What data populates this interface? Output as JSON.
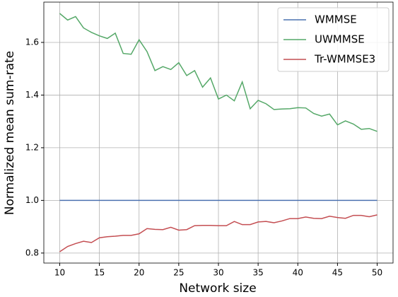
{
  "chart_data": {
    "type": "line",
    "x_label": "Network size",
    "y_label": "Normalized mean sum-rate",
    "x": [
      10,
      11,
      12,
      13,
      14,
      15,
      16,
      17,
      18,
      19,
      20,
      21,
      22,
      23,
      24,
      25,
      26,
      27,
      28,
      29,
      30,
      31,
      32,
      33,
      34,
      35,
      36,
      37,
      38,
      39,
      40,
      41,
      42,
      43,
      44,
      45,
      46,
      47,
      48,
      49,
      50
    ],
    "series": [
      {
        "name": "WMMSE",
        "color": "#4c72b0",
        "values": [
          1,
          1,
          1,
          1,
          1,
          1,
          1,
          1,
          1,
          1,
          1,
          1,
          1,
          1,
          1,
          1,
          1,
          1,
          1,
          1,
          1,
          1,
          1,
          1,
          1,
          1,
          1,
          1,
          1,
          1,
          1,
          1,
          1,
          1,
          1,
          1,
          1,
          1,
          1,
          1,
          1
        ]
      },
      {
        "name": "UWMMSE",
        "color": "#55a868",
        "values": [
          1.71,
          1.685,
          1.698,
          1.655,
          1.638,
          1.625,
          1.615,
          1.635,
          1.558,
          1.555,
          1.61,
          1.565,
          1.493,
          1.508,
          1.497,
          1.523,
          1.474,
          1.493,
          1.43,
          1.465,
          1.385,
          1.4,
          1.378,
          1.45,
          1.348,
          1.38,
          1.367,
          1.345,
          1.347,
          1.348,
          1.352,
          1.351,
          1.33,
          1.32,
          1.328,
          1.287,
          1.302,
          1.29,
          1.27,
          1.273,
          1.262
        ]
      },
      {
        "name": "Tr-WMMSE3",
        "color": "#c44e52",
        "values": [
          0.805,
          0.825,
          0.836,
          0.845,
          0.84,
          0.858,
          0.862,
          0.864,
          0.867,
          0.867,
          0.873,
          0.893,
          0.89,
          0.889,
          0.898,
          0.887,
          0.889,
          0.904,
          0.905,
          0.905,
          0.904,
          0.904,
          0.92,
          0.908,
          0.908,
          0.918,
          0.92,
          0.915,
          0.922,
          0.931,
          0.931,
          0.937,
          0.932,
          0.931,
          0.94,
          0.935,
          0.932,
          0.943,
          0.943,
          0.938,
          0.945
        ]
      }
    ],
    "xlim": [
      8,
      52
    ],
    "xticks": [
      10,
      15,
      20,
      25,
      30,
      35,
      40,
      45,
      50
    ],
    "ylim": [
      0.762,
      1.753
    ],
    "yticks": [
      0.8,
      {
        "value": 1.0,
        "label": "1.0"
      },
      1.2,
      1.4,
      1.6
    ],
    "grid": true,
    "legend": "upper-right"
  }
}
